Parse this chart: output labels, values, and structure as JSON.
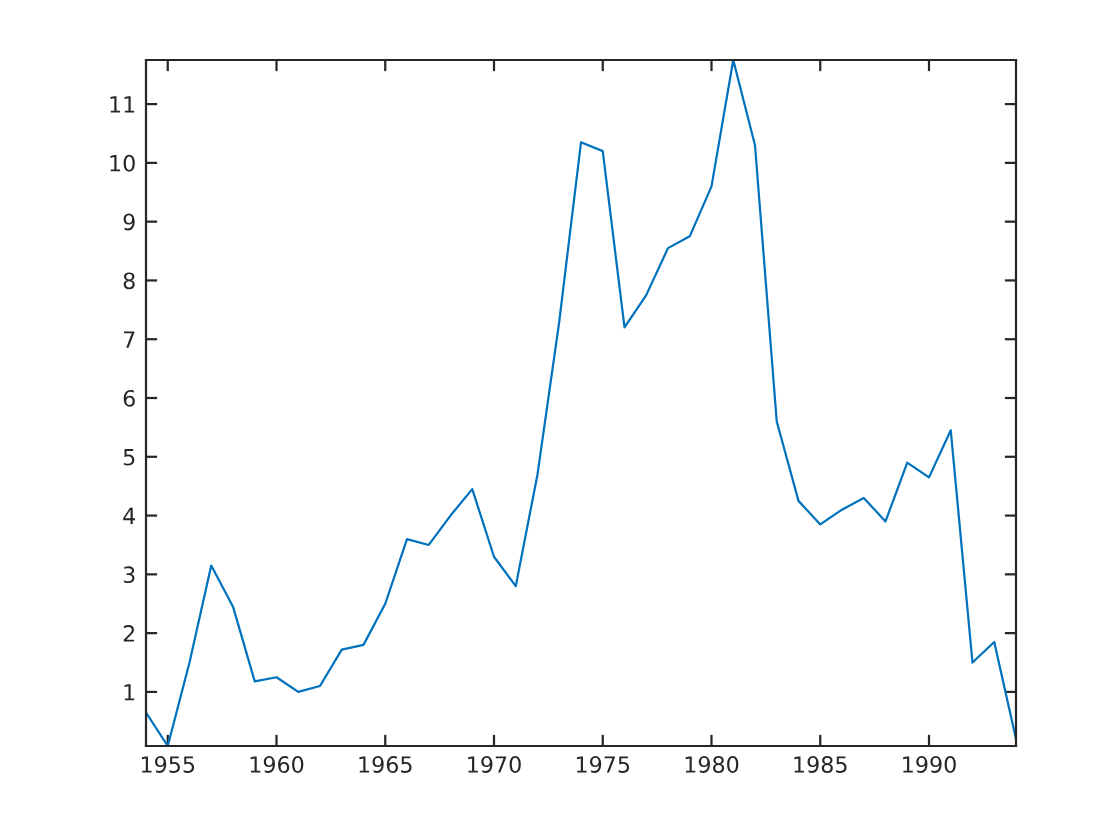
{
  "chart_data": {
    "type": "line",
    "x": [
      1954,
      1955,
      1956,
      1957,
      1958,
      1959,
      1960,
      1961,
      1962,
      1963,
      1964,
      1965,
      1966,
      1967,
      1968,
      1969,
      1970,
      1971,
      1972,
      1973,
      1974,
      1975,
      1976,
      1977,
      1978,
      1979,
      1980,
      1981,
      1982,
      1983,
      1984,
      1985,
      1986,
      1987,
      1988,
      1989,
      1990,
      1991,
      1992,
      1993,
      1994
    ],
    "series": [
      {
        "color": "#0072bd",
        "values": [
          0.65,
          0.08,
          1.5,
          3.15,
          2.45,
          1.18,
          1.25,
          1.0,
          1.1,
          1.72,
          1.8,
          2.5,
          3.6,
          3.5,
          4.0,
          4.45,
          3.3,
          2.8,
          4.7,
          7.3,
          10.35,
          10.2,
          7.2,
          7.75,
          8.55,
          8.75,
          9.6,
          11.75,
          10.3,
          5.6,
          4.25,
          3.85,
          4.1,
          4.3,
          3.9,
          4.9,
          4.65,
          5.45,
          1.5,
          1.85,
          0.2
        ]
      }
    ],
    "xlim": [
      1954,
      1994
    ],
    "ylim": [
      0.08,
      11.75
    ],
    "xticks": [
      1955,
      1960,
      1965,
      1970,
      1975,
      1980,
      1985,
      1990
    ],
    "yticks": [
      1,
      2,
      3,
      4,
      5,
      6,
      7,
      8,
      9,
      10,
      11
    ],
    "grid": false,
    "legend": false,
    "marker": "none",
    "line_style": "solid"
  }
}
